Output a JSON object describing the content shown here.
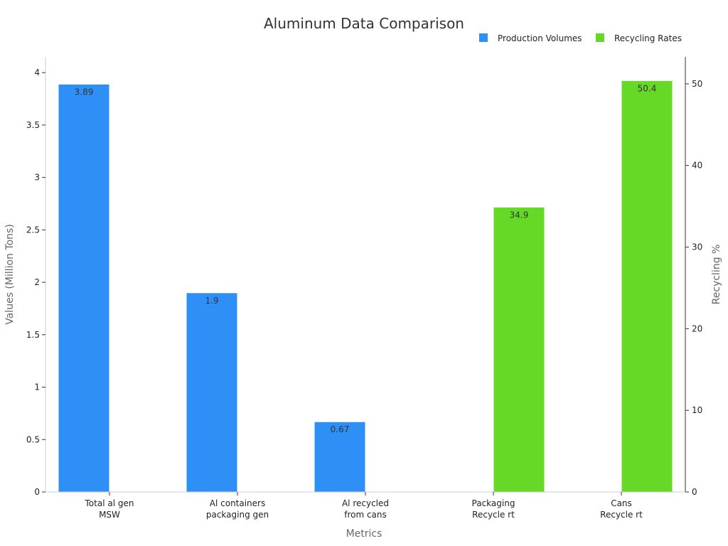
{
  "chart_data": {
    "type": "bar",
    "title": "Aluminum Data Comparison",
    "xlabel": "Metrics",
    "ylabel": "Values (Million Tons)",
    "y2label": "Recycling %",
    "categories": [
      [
        "Total al gen",
        "MSW"
      ],
      [
        "Al containers",
        "packaging gen"
      ],
      [
        "Al recycled",
        "from cans"
      ],
      [
        "Packaging",
        "Recycle rt"
      ],
      [
        "Cans",
        "Recycle rt"
      ]
    ],
    "series": [
      {
        "name": "Production Volumes",
        "axis": "left",
        "color": "#2E90F7",
        "values": [
          3.89,
          1.9,
          0.67,
          null,
          null
        ],
        "labels": [
          "3.89",
          "1.9",
          "0.67",
          "",
          ""
        ]
      },
      {
        "name": "Recycling Rates",
        "axis": "right",
        "color": "#66D926",
        "values": [
          null,
          null,
          null,
          34.9,
          50.4
        ],
        "labels": [
          "",
          "",
          "",
          "34.9",
          "50.4"
        ]
      }
    ],
    "ylim": [
      0,
      4.15
    ],
    "yticks": [
      0,
      0.5,
      1,
      1.5,
      2,
      2.5,
      3,
      3.5,
      4
    ],
    "yticklabels": [
      "0",
      "0.5",
      "1",
      "1.5",
      "2",
      "2.5",
      "3",
      "3.5",
      "4"
    ],
    "y2lim": [
      0,
      53.3
    ],
    "y2ticks": [
      0,
      10,
      20,
      30,
      40,
      50
    ],
    "y2ticklabels": [
      "0",
      "10",
      "20",
      "30",
      "40",
      "50"
    ],
    "legend_position": "top-right",
    "grid": false
  }
}
